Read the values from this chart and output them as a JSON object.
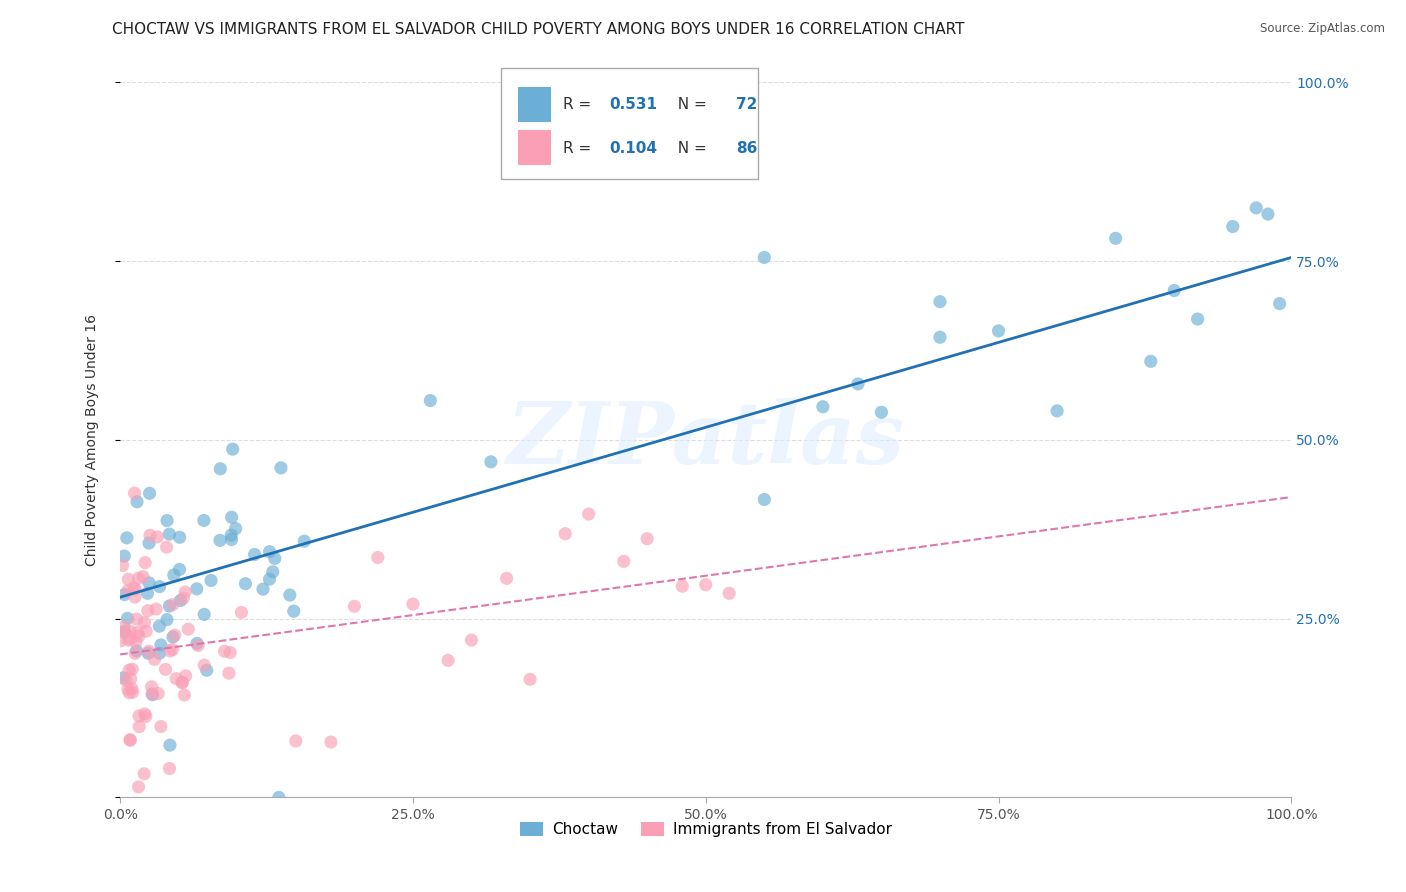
{
  "title": "CHOCTAW VS IMMIGRANTS FROM EL SALVADOR CHILD POVERTY AMONG BOYS UNDER 16 CORRELATION CHART",
  "source": "Source: ZipAtlas.com",
  "ylabel": "Child Poverty Among Boys Under 16",
  "choctaw_R": 0.531,
  "choctaw_N": 72,
  "salvador_R": 0.104,
  "salvador_N": 86,
  "choctaw_color": "#6baed6",
  "salvador_color": "#fa9fb5",
  "choctaw_line_color": "#2171b5",
  "salvador_line_color": "#de77ae",
  "watermark": "ZIPatlas",
  "xlim": [
    0.0,
    1.0
  ],
  "ylim": [
    0.0,
    1.0
  ],
  "xtick_vals": [
    0.0,
    0.25,
    0.5,
    0.75,
    1.0
  ],
  "ytick_vals": [
    0.0,
    0.25,
    0.5,
    0.75,
    1.0
  ],
  "xticklabels": [
    "0.0%",
    "25.0%",
    "50.0%",
    "75.0%",
    "100.0%"
  ],
  "yticklabels_right": [
    "",
    "25.0%",
    "50.0%",
    "75.0%",
    "100.0%"
  ],
  "background_color": "#ffffff",
  "grid_color": "#dddddd",
  "title_fontsize": 11,
  "label_fontsize": 10,
  "tick_fontsize": 10,
  "legend_fontsize": 11,
  "cho_line_x0": 0.0,
  "cho_line_y0": 0.28,
  "cho_line_x1": 1.0,
  "cho_line_y1": 0.755,
  "sal_line_x0": 0.0,
  "sal_line_y0": 0.2,
  "sal_line_x1": 1.0,
  "sal_line_y1": 0.42
}
